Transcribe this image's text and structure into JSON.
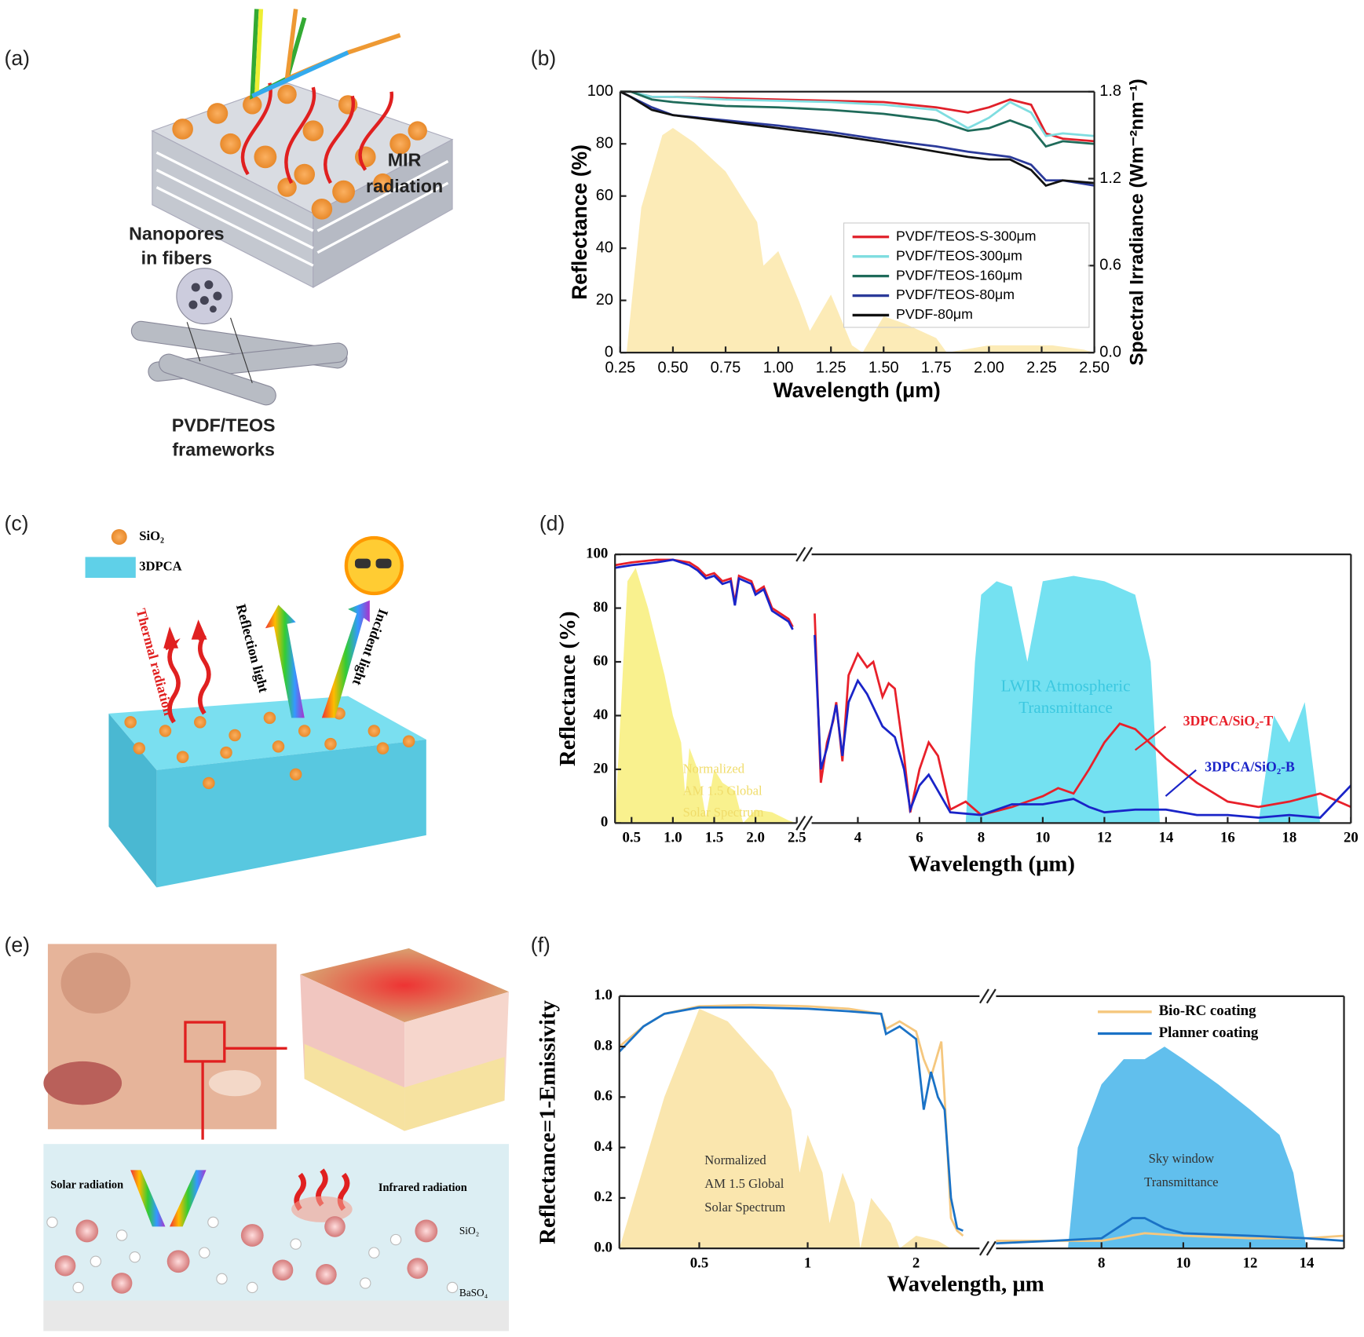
{
  "panels": [
    "(a)",
    "(b)",
    "(c)",
    "(d)",
    "(e)",
    "(f)"
  ],
  "illustration_a": [
    "MIR",
    "radiation",
    "Nanopores",
    "in fibers",
    "PVDF/TEOS",
    "frameworks"
  ],
  "illustration_c": [
    "SiO₂",
    "3DPCA",
    "Thermal radiation",
    "Reflection light",
    "Incident light"
  ],
  "illustration_e": [
    "Solar radiation",
    "Infrared radiation",
    "SiO₂",
    "BaSO₄"
  ],
  "chart_data": [
    {
      "type": "line",
      "xlabel": "Wavelength (μm)",
      "ylabel": "Reflectance (%)",
      "y2label": "Spectral Irradiance (Wm⁻²nm⁻¹)",
      "xlim": [
        0.25,
        2.5
      ],
      "xticks": [
        0.25,
        {
          "value": 0.5,
          "label": "0.50"
        },
        0.75,
        {
          "value": 1,
          "label": "1.00"
        },
        1.25,
        {
          "value": 1.5,
          "label": "1.50"
        },
        1.75,
        {
          "value": 2,
          "label": "2.00"
        },
        2.25,
        {
          "value": 2.5,
          "label": "2.50"
        }
      ],
      "ylim": [
        0,
        100
      ],
      "yticks": [
        0,
        20,
        40,
        60,
        80,
        100
      ],
      "y2lim": [
        0,
        1.8
      ],
      "y2ticks": [
        {
          "value": 0,
          "label": "0.0"
        },
        0.6,
        1.2,
        1.8
      ],
      "legend": "box",
      "series": [
        {
          "kind": "area",
          "axis": "y2",
          "color": "#fbe7aa",
          "x": [
            0.28,
            0.35,
            0.45,
            0.5,
            0.6,
            0.75,
            0.9,
            0.93,
            1.0,
            1.1,
            1.15,
            1.25,
            1.35,
            1.4,
            1.5,
            1.6,
            1.75,
            1.8,
            2.0,
            2.3,
            2.45,
            2.5
          ],
          "values": [
            0,
            1.0,
            1.5,
            1.55,
            1.45,
            1.25,
            0.9,
            0.6,
            0.7,
            0.35,
            0.15,
            0.4,
            0.05,
            0,
            0.25,
            0.2,
            0.1,
            0,
            0.05,
            0.05,
            0.02,
            0
          ]
        },
        {
          "name": "PVDF/TEOS-S-300μm",
          "color": "#e0202a",
          "x": [
            0.25,
            0.3,
            0.4,
            0.5,
            0.75,
            1.0,
            1.25,
            1.5,
            1.75,
            1.9,
            2.0,
            2.1,
            2.2,
            2.27,
            2.35,
            2.5
          ],
          "values": [
            100,
            100,
            98,
            98,
            97.5,
            97,
            96.5,
            96,
            94,
            92,
            94,
            97,
            95,
            84,
            82,
            81
          ]
        },
        {
          "name": "PVDF/TEOS-300μm",
          "color": "#7fdde0",
          "x": [
            0.25,
            0.3,
            0.4,
            0.5,
            0.75,
            1.0,
            1.25,
            1.5,
            1.75,
            1.9,
            2.0,
            2.1,
            2.2,
            2.27,
            2.35,
            2.5
          ],
          "values": [
            100,
            100,
            98,
            98,
            97,
            96.5,
            96,
            95,
            93,
            86,
            90,
            96,
            92,
            83,
            84,
            83
          ]
        },
        {
          "name": "PVDF/TEOS-160μm",
          "color": "#1f6b5a",
          "x": [
            0.25,
            0.3,
            0.4,
            0.5,
            0.75,
            1.0,
            1.25,
            1.5,
            1.75,
            1.9,
            2.0,
            2.1,
            2.2,
            2.27,
            2.35,
            2.5
          ],
          "values": [
            100,
            100,
            97,
            96,
            94.5,
            94,
            93,
            91.5,
            89,
            85,
            86,
            89,
            86,
            79,
            81,
            80
          ]
        },
        {
          "name": "PVDF/TEOS-80μm",
          "color": "#2b3a9a",
          "x": [
            0.25,
            0.3,
            0.4,
            0.5,
            0.75,
            1.0,
            1.25,
            1.5,
            1.75,
            1.9,
            2.0,
            2.1,
            2.2,
            2.27,
            2.35,
            2.5
          ],
          "values": [
            100,
            98,
            94,
            91,
            89,
            87,
            84.5,
            81.5,
            79,
            77,
            76,
            75,
            72,
            66,
            66,
            64
          ]
        },
        {
          "name": "PVDF-80μm",
          "color": "#111111",
          "x": [
            0.25,
            0.3,
            0.4,
            0.5,
            0.75,
            1.0,
            1.25,
            1.5,
            1.75,
            1.9,
            2.0,
            2.1,
            2.2,
            2.27,
            2.35,
            2.5
          ],
          "values": [
            100,
            98,
            93,
            91,
            88.5,
            86,
            83.5,
            80.5,
            77,
            75,
            74,
            74,
            70,
            64,
            66,
            65
          ]
        }
      ]
    },
    {
      "type": "line",
      "xlabel": "Wavelength (μm)",
      "ylabel": "Reflectance (%)",
      "x_segments": [
        {
          "xlim": [
            0.3,
            2.5
          ],
          "xticks": [
            0.5,
            {
              "value": 1,
              "label": "1.0"
            },
            1.5,
            {
              "value": 2,
              "label": "2.0"
            },
            2.5
          ]
        },
        {
          "xlim": [
            2.5,
            20
          ],
          "xticks": [
            4,
            6,
            8,
            10,
            12,
            14,
            16,
            18,
            20
          ]
        }
      ],
      "ylim": [
        0,
        100
      ],
      "yticks": [
        0,
        20,
        40,
        60,
        80,
        100
      ],
      "legend": "labels",
      "annotations": [
        "Normalized",
        "AM 1.5 Global",
        "Solar Spectrum",
        "LWIR Atmospheric",
        "Transmittance"
      ],
      "series": [
        {
          "kind": "area",
          "color": "#f8ee7a",
          "x": [
            0.3,
            0.45,
            0.55,
            0.7,
            0.9,
            1.0,
            1.1,
            1.15,
            1.2,
            1.3,
            1.4,
            1.5,
            1.6,
            1.75,
            1.85,
            2.0,
            2.2,
            2.4,
            2.5
          ],
          "values": [
            0,
            90,
            95,
            80,
            55,
            40,
            30,
            10,
            28,
            20,
            2,
            20,
            15,
            12,
            0,
            5,
            4,
            1,
            0
          ]
        },
        {
          "kind": "area",
          "color": "#5cdcef",
          "x": [
            7.5,
            7.8,
            8.0,
            8.5,
            9.0,
            9.5,
            10,
            11,
            12,
            13,
            13.5,
            13.8,
            17,
            17.5,
            18,
            18.5,
            19
          ],
          "values": [
            0,
            60,
            85,
            90,
            88,
            60,
            90,
            92,
            90,
            85,
            60,
            0,
            0,
            40,
            30,
            45,
            0
          ]
        },
        {
          "name": "3DPCA/SiO₂-T",
          "color": "#e8202a",
          "x": [
            0.3,
            0.5,
            0.8,
            1.0,
            1.2,
            1.3,
            1.4,
            1.5,
            1.6,
            1.7,
            1.75,
            1.8,
            1.95,
            2.0,
            2.1,
            2.2,
            2.3,
            2.4,
            2.45,
            null,
            2.6,
            2.8,
            3.0,
            3.2,
            3.3,
            3.5,
            3.7,
            4.0,
            4.3,
            4.5,
            4.8,
            5.0,
            5.2,
            5.5,
            5.7,
            6.0,
            6.3,
            6.6,
            7.0,
            7.5,
            8.0,
            9.0,
            10,
            10.5,
            11,
            11.5,
            12,
            12.5,
            13,
            14,
            15,
            16,
            17,
            18,
            19,
            20
          ],
          "values": [
            96,
            97,
            98,
            98,
            97,
            95,
            92,
            93,
            90,
            91,
            82,
            92,
            90,
            86,
            88,
            80,
            78,
            76,
            73,
            null,
            78,
            15,
            30,
            38,
            45,
            23,
            55,
            63,
            58,
            60,
            47,
            52,
            50,
            25,
            4,
            20,
            30,
            25,
            5,
            8,
            3,
            6,
            10,
            13,
            11,
            20,
            30,
            37,
            35,
            24,
            15,
            8,
            6,
            8,
            11,
            6
          ]
        },
        {
          "name": "3DPCA/SiO₂-B",
          "color": "#1a24c8",
          "x": [
            0.3,
            0.5,
            0.8,
            1.0,
            1.2,
            1.3,
            1.4,
            1.5,
            1.6,
            1.7,
            1.75,
            1.8,
            1.95,
            2.0,
            2.1,
            2.2,
            2.3,
            2.4,
            2.45,
            null,
            2.6,
            2.8,
            3.0,
            3.3,
            3.5,
            3.7,
            4.0,
            4.3,
            4.8,
            5.2,
            5.5,
            5.7,
            6.0,
            6.3,
            6.6,
            7.0,
            8.0,
            9,
            10,
            11,
            11.5,
            12,
            13,
            14,
            15,
            16,
            17,
            18,
            19,
            20
          ],
          "values": [
            95,
            96,
            97,
            98,
            96,
            94,
            91,
            92,
            89,
            90,
            81,
            91,
            89,
            85,
            87,
            79,
            77,
            75,
            72,
            null,
            70,
            20,
            28,
            44,
            25,
            45,
            53,
            48,
            36,
            32,
            20,
            5,
            14,
            18,
            12,
            4,
            3,
            7,
            7,
            9,
            6,
            4,
            5,
            5,
            3,
            3,
            2,
            3,
            2,
            14
          ]
        }
      ]
    },
    {
      "type": "line",
      "xlabel": "Wavelength, μm",
      "ylabel": "Reflectance=1-Emissivity",
      "xscale": "log",
      "x_segments": [
        {
          "xlim": [
            0.3,
            3.0
          ],
          "xticks": [
            0.5,
            1,
            2
          ]
        },
        {
          "xlim": [
            6,
            15.5
          ],
          "xticks": [
            8,
            10,
            12,
            14
          ]
        }
      ],
      "ylim": [
        0,
        1
      ],
      "yticks": [
        {
          "value": 0,
          "label": "0.0"
        },
        {
          "value": 0.2,
          "label": "0.2"
        },
        {
          "value": 0.4,
          "label": "0.4"
        },
        {
          "value": 0.6,
          "label": "0.6"
        },
        {
          "value": 0.8,
          "label": "0.8"
        },
        {
          "value": 1,
          "label": "1.0"
        }
      ],
      "legend": "box",
      "annotations": [
        "Normalized",
        "AM 1.5 Global",
        "Solar Spectrum",
        "Sky window",
        "Transmittance"
      ],
      "series": [
        {
          "kind": "area",
          "color": "#f9e2a0",
          "x": [
            0.3,
            0.4,
            0.5,
            0.6,
            0.8,
            0.9,
            0.95,
            1.0,
            1.1,
            1.15,
            1.25,
            1.35,
            1.4,
            1.5,
            1.7,
            1.8,
            2.0,
            2.3,
            2.5
          ],
          "values": [
            0,
            0.6,
            0.95,
            0.9,
            0.7,
            0.55,
            0.3,
            0.45,
            0.3,
            0.1,
            0.3,
            0.18,
            0,
            0.2,
            0.1,
            0,
            0.05,
            0.03,
            0
          ]
        },
        {
          "kind": "area",
          "color": "#45b4ea",
          "x": [
            7.3,
            7.5,
            8,
            8.5,
            9,
            9.5,
            10,
            11,
            12,
            13,
            13.5,
            13.9,
            14
          ],
          "values": [
            0,
            0.4,
            0.65,
            0.75,
            0.75,
            0.8,
            0.75,
            0.65,
            0.55,
            0.45,
            0.3,
            0.05,
            0
          ]
        },
        {
          "name": "Bio-RC coating",
          "color": "#f5c77e",
          "x": [
            0.3,
            0.35,
            0.4,
            0.5,
            0.7,
            1.0,
            1.3,
            1.6,
            1.65,
            1.8,
            2.0,
            2.1,
            2.2,
            2.35,
            2.4,
            2.5,
            2.6,
            2.7,
            null,
            6.0,
            7,
            8,
            9,
            10,
            12,
            14,
            15.5
          ],
          "values": [
            0.8,
            0.88,
            0.93,
            0.96,
            0.965,
            0.96,
            0.95,
            0.93,
            0.87,
            0.9,
            0.86,
            0.75,
            0.68,
            0.82,
            0.6,
            0.12,
            0.07,
            0.05,
            null,
            0.03,
            0.03,
            0.03,
            0.06,
            0.05,
            0.04,
            0.04,
            0.05
          ]
        },
        {
          "name": "Planner coating",
          "color": "#1a72c6",
          "x": [
            0.3,
            0.35,
            0.4,
            0.5,
            0.7,
            1.0,
            1.3,
            1.6,
            1.65,
            1.8,
            2.0,
            2.1,
            2.2,
            2.3,
            2.4,
            2.5,
            2.6,
            2.7,
            null,
            6.0,
            7,
            8,
            8.7,
            9,
            9.5,
            10,
            12,
            14,
            15.5
          ],
          "values": [
            0.78,
            0.88,
            0.93,
            0.955,
            0.955,
            0.95,
            0.94,
            0.93,
            0.85,
            0.88,
            0.83,
            0.55,
            0.7,
            0.6,
            0.55,
            0.2,
            0.08,
            0.07,
            null,
            0.02,
            0.03,
            0.04,
            0.12,
            0.12,
            0.08,
            0.06,
            0.05,
            0.04,
            0.03
          ]
        }
      ]
    }
  ]
}
